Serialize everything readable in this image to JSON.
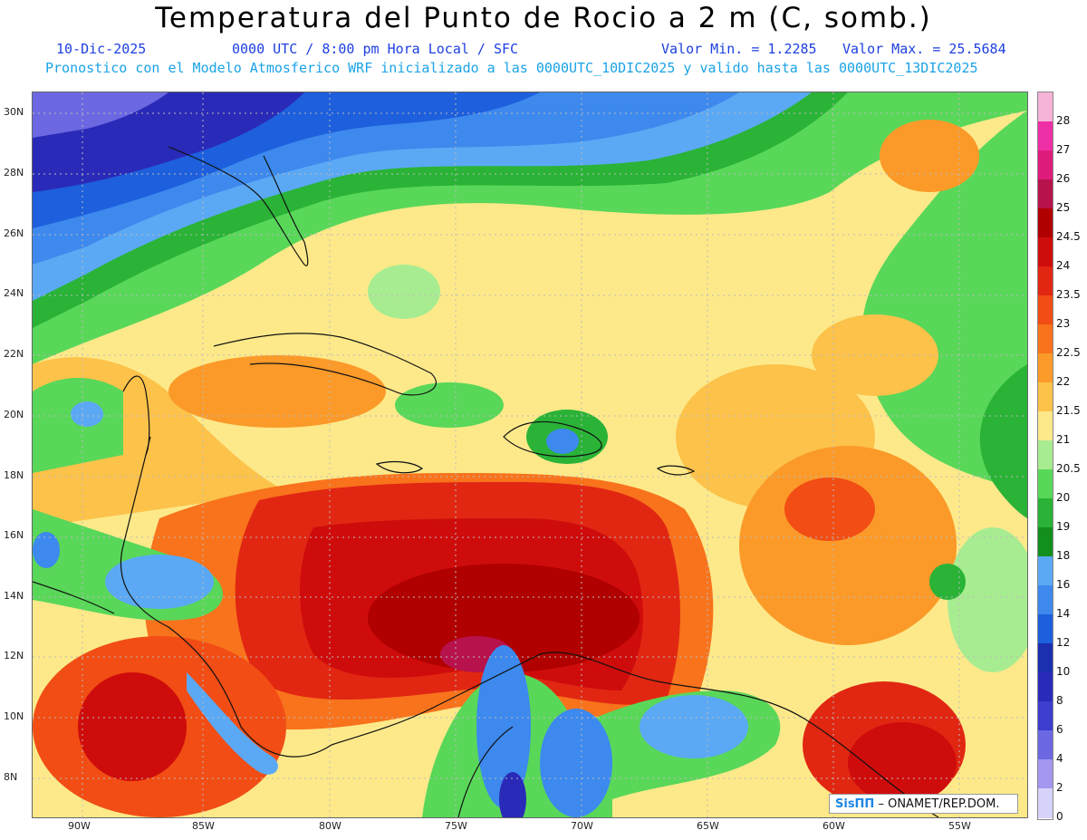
{
  "header": {
    "title": "Temperatura del Punto de Rocio a 2 m (C, somb.)",
    "date": "10-Dic-2025",
    "time": "0000 UTC / 8:00 pm Hora Local / SFC",
    "min": "Valor Min. = 1.2285",
    "max": "Valor Max. = 25.5684",
    "subtitle": "Pronostico con el Modelo Atmosferico WRF inicializado a las 0000UTC_10DIC2025 y valido hasta las  0000UTC_13DIC2025"
  },
  "lat_labels": [
    "30N",
    "28N",
    "26N",
    "24N",
    "22N",
    "20N",
    "18N",
    "16N",
    "14N",
    "12N",
    "10N",
    "8N"
  ],
  "lon_labels": [
    "90W",
    "85W",
    "80W",
    "75W",
    "70W",
    "65W",
    "60W",
    "55W"
  ],
  "colorbar": {
    "labels": [
      "28",
      "27",
      "26",
      "25",
      "24.5",
      "24",
      "23.5",
      "23",
      "22.5",
      "22",
      "21.5",
      "21",
      "20.5",
      "20",
      "19",
      "18",
      "16",
      "14",
      "12",
      "10",
      "8",
      "6",
      "4",
      "2",
      "0"
    ],
    "colors": [
      "#f5b3d8",
      "#ef2fa6",
      "#df1c7c",
      "#b8124d",
      "#b00000",
      "#cf0c0c",
      "#e12712",
      "#f14d14",
      "#f8731c",
      "#fb9a29",
      "#fcc24a",
      "#fde98a",
      "#a8ec91",
      "#59d759",
      "#2ab337",
      "#138f1e",
      "#5ba9f4",
      "#3d89ee",
      "#1d5fdc",
      "#1b2fb0",
      "#2a2ab8",
      "#3d3ecf",
      "#6c68e2",
      "#a497f0",
      "#d6d3fb"
    ]
  },
  "credit": {
    "brand": "SisПΠ",
    "text": " – ONAMET/REP.DOM."
  }
}
